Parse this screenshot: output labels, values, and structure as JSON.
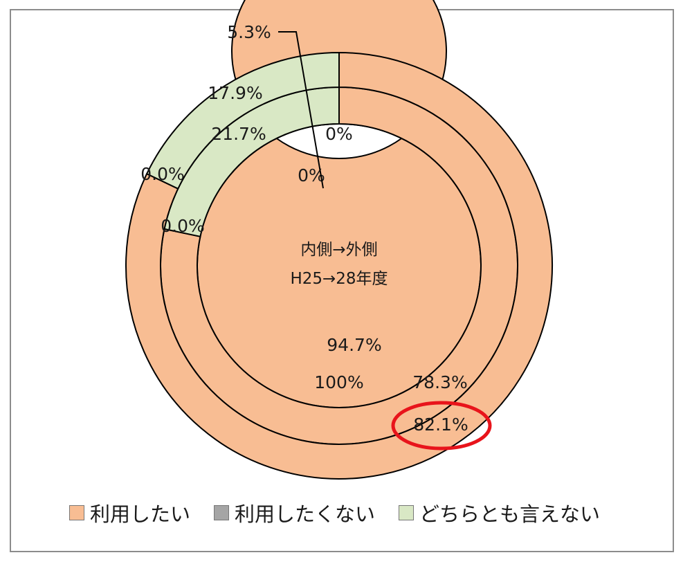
{
  "chart_data": {
    "type": "donut",
    "center_label": [
      "内側→外側",
      "H25→28年度"
    ],
    "legend": {
      "position": "bottom",
      "items": [
        {
          "label": "利用したい",
          "color": "#f8bd93"
        },
        {
          "label": "利用したくない",
          "color": "#a5a5a5"
        },
        {
          "label": "どちらとも言えない",
          "color": "#d9e8c5"
        }
      ]
    },
    "rings": [
      {
        "order": "inner",
        "values": [
          94.7,
          0.0,
          5.3
        ],
        "labels": [
          "94.7%",
          "0%",
          "5.3%"
        ]
      },
      {
        "order": "second",
        "values": [
          100,
          0,
          0
        ],
        "labels": [
          "100%",
          "0%",
          ""
        ]
      },
      {
        "order": "third",
        "values": [
          78.3,
          0.0,
          21.7
        ],
        "labels": [
          "78.3%",
          "0.0%",
          "21.7%"
        ]
      },
      {
        "order": "outer",
        "values": [
          82.1,
          0.0,
          17.9
        ],
        "labels": [
          "82.1%",
          "0.0%",
          "17.9%"
        ]
      }
    ],
    "highlight": "82.1%",
    "colors": {
      "outline": "#000000",
      "highlight": "#e8141b"
    }
  }
}
